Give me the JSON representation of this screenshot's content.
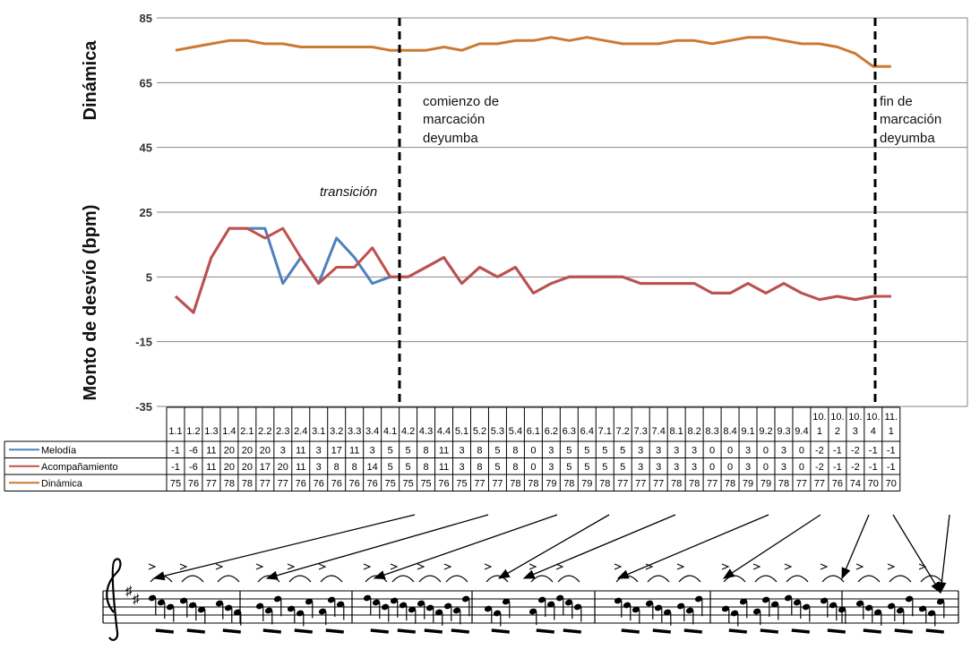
{
  "chart_data": {
    "type": "line",
    "ylim": [
      -35,
      85
    ],
    "yticks": [
      85,
      65,
      45,
      25,
      5,
      -15,
      -35
    ],
    "ylabel_top": "Dinámica",
    "ylabel_bottom": "Monto de desvío (bpm)",
    "categories": [
      "1.1",
      "1.2",
      "1.3",
      "1.4",
      "2.1",
      "2.2",
      "2.3",
      "2.4",
      "3.1",
      "3.2",
      "3.3",
      "3.4",
      "4.1",
      "4.2",
      "4.3",
      "4.4",
      "5.1",
      "5.2",
      "5.3",
      "5.4",
      "6.1",
      "6.2",
      "6.3",
      "6.4",
      "7.1",
      "7.2",
      "7.3",
      "7.4",
      "8.1",
      "8.2",
      "8.3",
      "8.4",
      "9.1",
      "9.2",
      "9.3",
      "9.4",
      "10.1",
      "10.2",
      "10.3",
      "10.4",
      "11.1"
    ],
    "grid": true,
    "legend_placement": "table-left",
    "series": [
      {
        "name": "Melodía",
        "color": "#4f81bd",
        "values": [
          -1,
          -6,
          11,
          20,
          20,
          20,
          3,
          11,
          3,
          17,
          11,
          3,
          5,
          5,
          8,
          11,
          3,
          8,
          5,
          8,
          0,
          3,
          5,
          5,
          5,
          5,
          3,
          3,
          3,
          3,
          0,
          0,
          3,
          0,
          3,
          0,
          -2,
          -1,
          -2,
          -1,
          -1
        ]
      },
      {
        "name": "Acompañamiento",
        "color": "#c0504d",
        "values": [
          -1,
          -6,
          11,
          20,
          20,
          17,
          20,
          11,
          3,
          8,
          8,
          14,
          5,
          5,
          8,
          11,
          3,
          8,
          5,
          8,
          0,
          3,
          5,
          5,
          5,
          5,
          3,
          3,
          3,
          3,
          0,
          0,
          3,
          0,
          3,
          0,
          -2,
          -1,
          -2,
          -1,
          -1
        ]
      },
      {
        "name": "Dinámica",
        "color": "#cc7a33",
        "values": [
          75,
          76,
          77,
          78,
          78,
          77,
          77,
          76,
          76,
          76,
          76,
          76,
          75,
          75,
          75,
          76,
          75,
          77,
          77,
          78,
          78,
          79,
          78,
          79,
          78,
          77,
          77,
          77,
          78,
          78,
          77,
          78,
          79,
          79,
          78,
          77,
          77,
          76,
          74,
          70,
          70
        ]
      }
    ],
    "annotations": {
      "transition": "transición",
      "start_line1": "comienzo  de",
      "start_line2": "marcación",
      "start_line3": "deyumba",
      "end_line1": "fin de",
      "end_line2": "marcación",
      "end_line3": "deyumba"
    }
  },
  "colors": {
    "melodia": "#4f81bd",
    "acompanamiento": "#c0504d",
    "dinamica": "#cc7a33",
    "grid": "#868686"
  }
}
